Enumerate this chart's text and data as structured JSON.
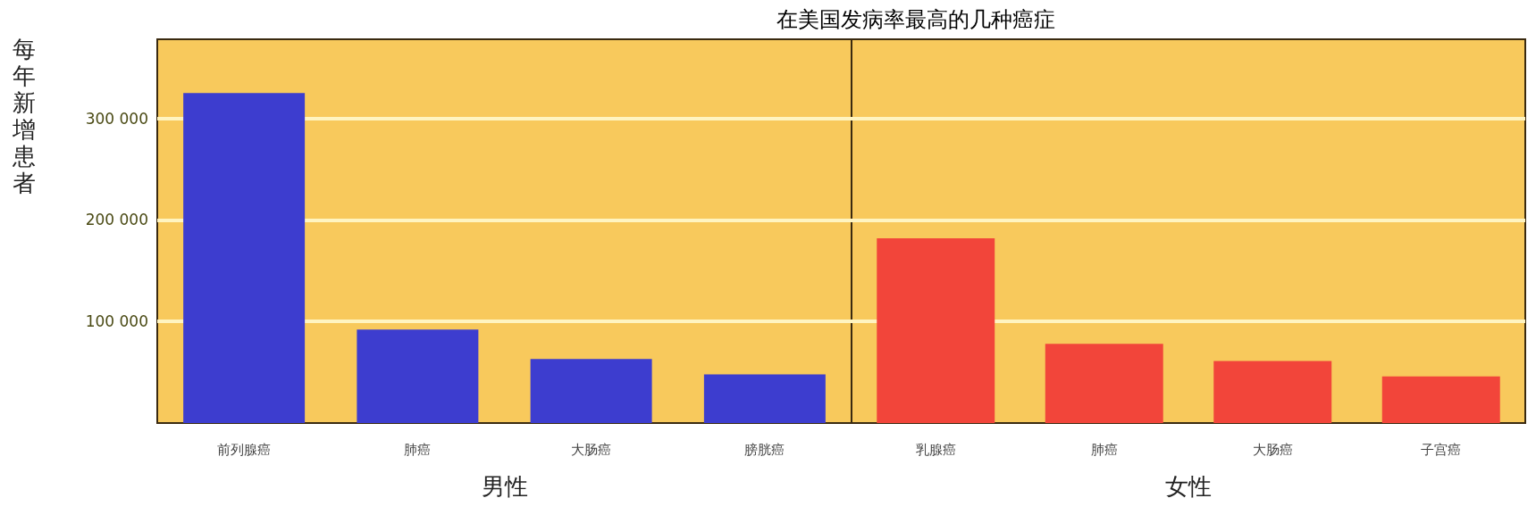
{
  "chart_data": [
    {
      "type": "bar",
      "title": "在美国发病率最高的几种癌症",
      "ylabel": "每年新增患者",
      "xlabel": "男性",
      "categories": [
        "前列腺癌",
        "肺癌",
        "大肠癌",
        "膀胱癌"
      ],
      "values": [
        325000,
        92000,
        63000,
        48000
      ],
      "color": "#3d3dcf",
      "ylim": [
        0,
        378000
      ],
      "yticks": [
        {
          "value": 100000,
          "label": "100 000"
        },
        {
          "value": 200000,
          "label": "200 000"
        },
        {
          "value": 300000,
          "label": "300 000"
        }
      ],
      "grid": "y"
    },
    {
      "type": "bar",
      "xlabel": "女性",
      "categories": [
        "乳腺癌",
        "肺癌",
        "大肠癌",
        "子宫癌"
      ],
      "values": [
        182000,
        78000,
        61000,
        46000
      ],
      "color": "#f2453a",
      "ylim": [
        0,
        378000
      ],
      "yticks": [
        {
          "value": 100000,
          "label": null
        },
        {
          "value": 200000,
          "label": null
        },
        {
          "value": 300000,
          "label": null
        }
      ],
      "grid": "y",
      "tick_labels": "x"
    }
  ]
}
